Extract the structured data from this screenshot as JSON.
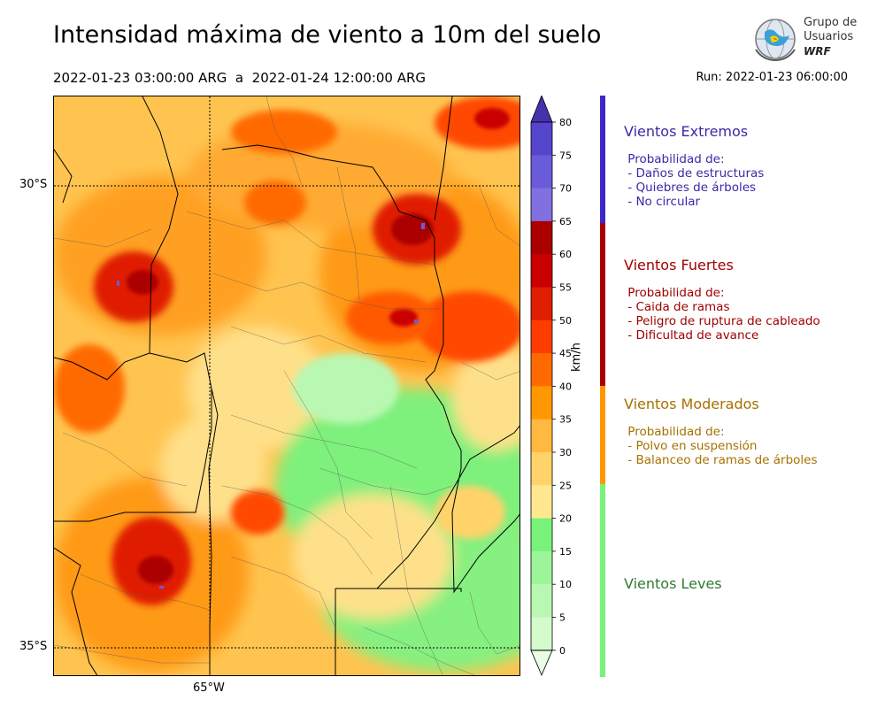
{
  "header": {
    "title": "Intensidad máxima de viento a 10m del suelo",
    "period": "2022-01-23 03:00:00 ARG  a  2022-01-24 12:00:00 ARG",
    "run": "Run: 2022-01-23 06:00:00"
  },
  "logo": {
    "line1": "Grupo de",
    "line2": "Usuarios",
    "line3": "WRF"
  },
  "map": {
    "lat_labels": [
      "30°S",
      "35°S"
    ],
    "lon_labels": [
      "65°W"
    ]
  },
  "colorbar": {
    "unit": "km/h",
    "ticks": [
      "80",
      "75",
      "70",
      "65",
      "60",
      "55",
      "50",
      "45",
      "40",
      "35",
      "30",
      "25",
      "20",
      "15",
      "10",
      "5",
      "0"
    ],
    "colors": [
      "#4433aa",
      "#5544cc",
      "#6a5bd9",
      "#8070e0",
      "#aa0000",
      "#c80000",
      "#e01e00",
      "#ff3c00",
      "#ff6a00",
      "#ff9800",
      "#ffb840",
      "#ffd36a",
      "#ffe890",
      "#79f27a",
      "#9df59a",
      "#b9f8b2",
      "#d4fbcc",
      "#ecfde6"
    ]
  },
  "legend": [
    {
      "title": "Vientos Extremos",
      "color": "#3c28a8",
      "text": " Probabilidad de:\n - Daños de estructuras\n - Quiebres de árboles\n - No circular"
    },
    {
      "title": "Vientos Fuertes",
      "color": "#a00000",
      "text": " Probabilidad de:\n - Caida de ramas\n - Peligro de ruptura de cableado\n - Dificultad de avance"
    },
    {
      "title": "Vientos Moderados",
      "color": "#a87000",
      "text": " Probabilidad de:\n - Polvo en suspensión\n - Balanceo de ramas de árboles"
    },
    {
      "title": "Vientos Leves",
      "color": "#2e7d32",
      "text": ""
    }
  ]
}
